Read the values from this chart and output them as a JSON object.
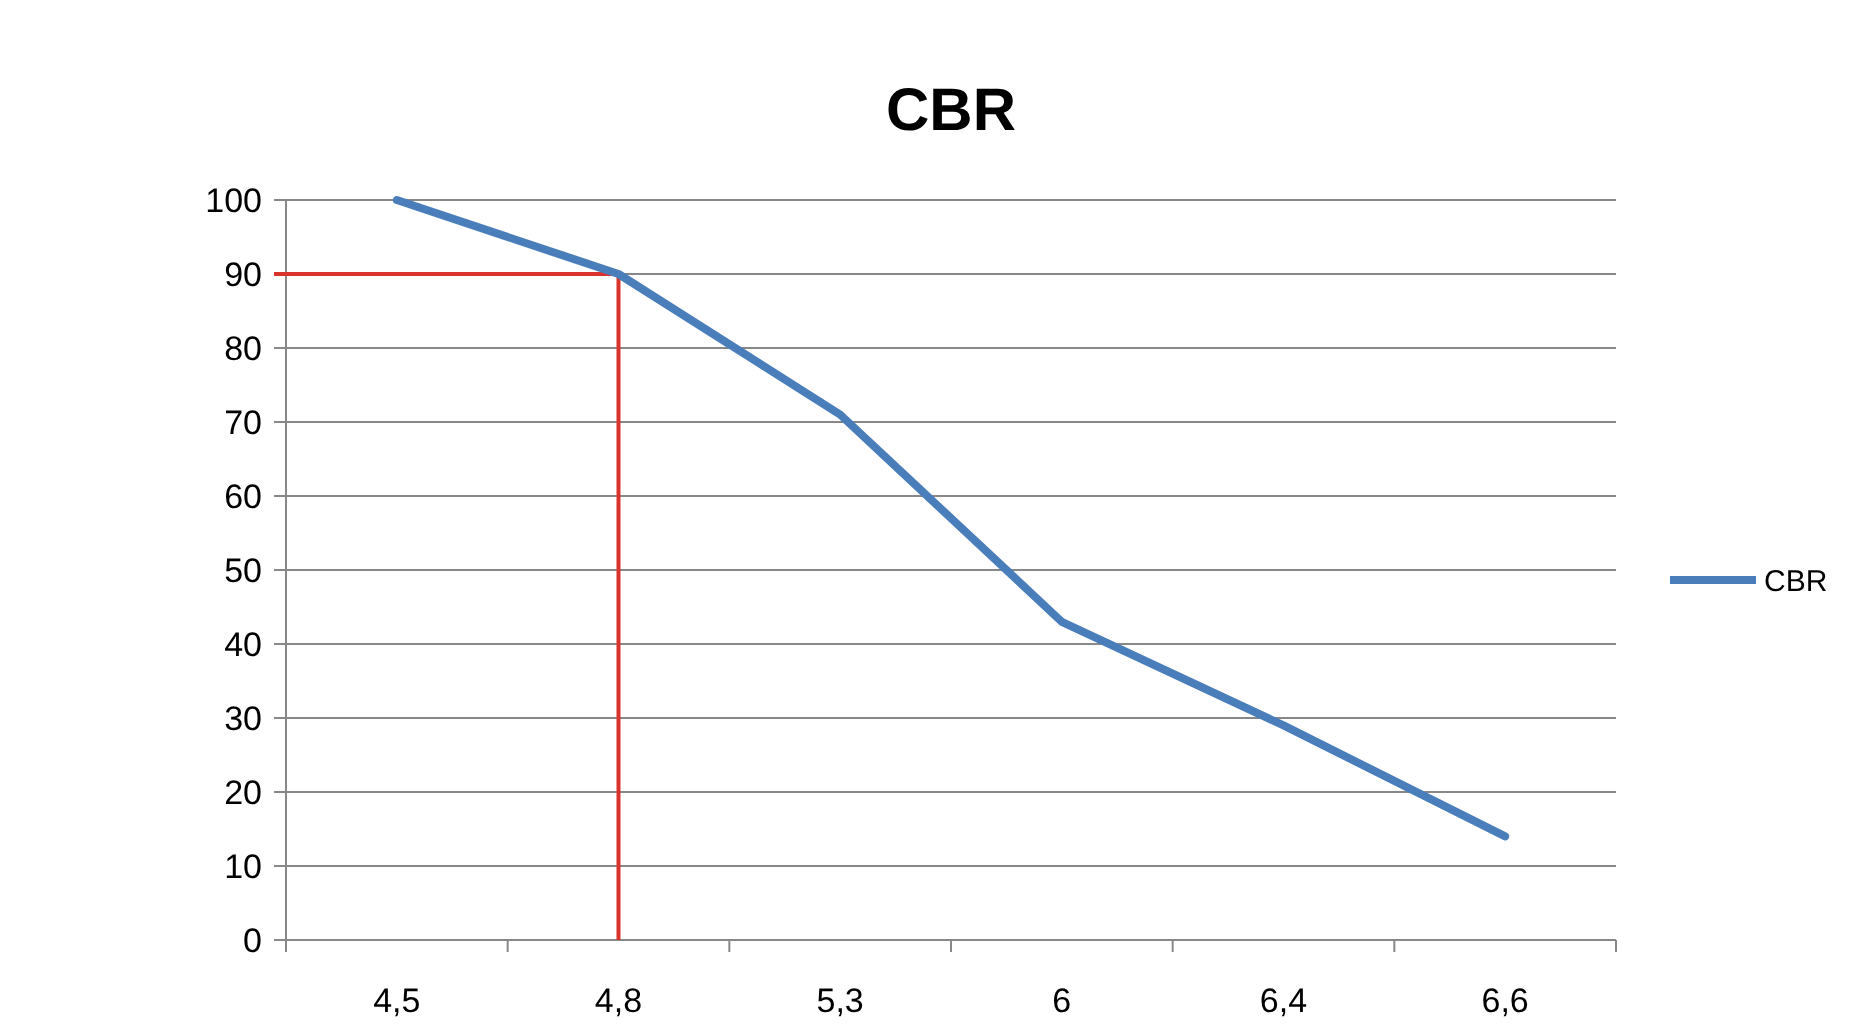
{
  "chart_data": {
    "type": "line",
    "title": "CBR",
    "categories": [
      "4,5",
      "4,8",
      "5,3",
      "6",
      "6,4",
      "6,6"
    ],
    "series": [
      {
        "name": "CBR",
        "color": "#4a7ebb",
        "values": [
          100,
          90,
          71,
          43,
          29,
          14
        ]
      }
    ],
    "ylim": [
      0,
      100
    ],
    "yticks": [
      0,
      10,
      20,
      30,
      40,
      50,
      60,
      70,
      80,
      90,
      100
    ],
    "grid": "y",
    "legend": "right",
    "marker": "none",
    "line_style": "solid",
    "ref_lines": [
      {
        "axis": "y",
        "value": 90,
        "color": "#d9342b"
      },
      {
        "axis": "x",
        "value": "4,8",
        "color": "#d9342b"
      }
    ]
  }
}
